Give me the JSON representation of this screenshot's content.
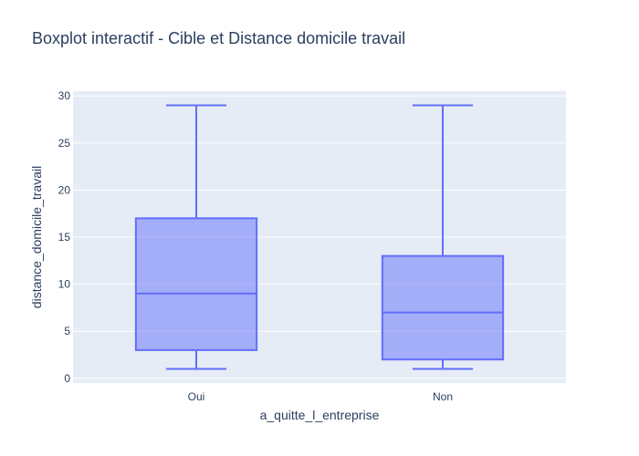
{
  "chart_data": {
    "type": "box",
    "title": "Boxplot interactif - Cible et Distance domicile travail",
    "xlabel": "a_quitte_l_entreprise",
    "ylabel": "distance_domicile_travail",
    "categories": [
      "Oui",
      "Non"
    ],
    "ylim": [
      -0.5,
      30.5
    ],
    "yticks": [
      0,
      5,
      10,
      15,
      20,
      25,
      30
    ],
    "grid": true,
    "boxes": [
      {
        "category": "Oui",
        "min": 1,
        "q1": 3,
        "median": 9,
        "q3": 17,
        "max": 29
      },
      {
        "category": "Non",
        "min": 1,
        "q1": 2,
        "median": 7,
        "q3": 13,
        "max": 29
      }
    ],
    "colors": {
      "plot_bg": "#e5ecf6",
      "grid": "#ffffff",
      "box_line": "#636efa",
      "box_fill": "rgba(99,110,250,0.5)",
      "text": "#2a3f5f"
    }
  }
}
